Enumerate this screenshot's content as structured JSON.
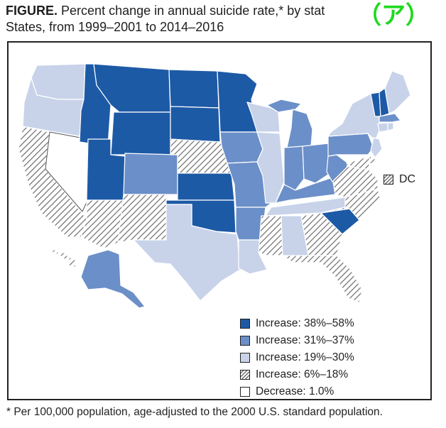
{
  "title_bold": "FIGURE.",
  "title_line1": "Percent change in annual suicide rate,* by stat",
  "title_line2": "States, from 1999–2001 to 2014–2016",
  "badge": "（ア）",
  "dc_label": "DC",
  "footnote": "* Per 100,000 population, age-adjusted to the 2000 U.S. standard population.",
  "legend": [
    {
      "label": "Increase: 38%–58%",
      "fill": "#1d5aa6",
      "pattern": "solid"
    },
    {
      "label": "Increase: 31%–37%",
      "fill": "#6b8fc8",
      "pattern": "solid"
    },
    {
      "label": "Increase: 19%–30%",
      "fill": "#c8d3ea",
      "pattern": "solid"
    },
    {
      "label": "Increase: 6%–18%",
      "fill": "#ffffff",
      "pattern": "hatch"
    },
    {
      "label": "Decrease: 1.0%",
      "fill": "#ffffff",
      "pattern": "solid"
    }
  ],
  "categories": {
    "c1": "Increase: 38%–58%",
    "c2": "Increase: 31%–37%",
    "c3": "Increase: 19%–30%",
    "c4": "Increase: 6%–18%",
    "c5": "Decrease: 1.0%"
  },
  "colors": {
    "c1": "#1d5aa6",
    "c2": "#6b8fc8",
    "c3": "#c8d3ea",
    "c5": "#ffffff",
    "stroke": "#ffffff",
    "hatch": "#6c6c6c",
    "badge": "#1fd91f"
  },
  "states": [
    {
      "id": "WA",
      "cat": "c3"
    },
    {
      "id": "OR",
      "cat": "c3"
    },
    {
      "id": "CA",
      "cat": "c4"
    },
    {
      "id": "NV",
      "cat": "c5"
    },
    {
      "id": "ID",
      "cat": "c1"
    },
    {
      "id": "MT",
      "cat": "c1"
    },
    {
      "id": "WY",
      "cat": "c1"
    },
    {
      "id": "UT",
      "cat": "c1"
    },
    {
      "id": "AZ",
      "cat": "c4"
    },
    {
      "id": "CO",
      "cat": "c2"
    },
    {
      "id": "NM",
      "cat": "c4"
    },
    {
      "id": "ND",
      "cat": "c1"
    },
    {
      "id": "SD",
      "cat": "c1"
    },
    {
      "id": "NE",
      "cat": "c4"
    },
    {
      "id": "KS",
      "cat": "c1"
    },
    {
      "id": "OK",
      "cat": "c1"
    },
    {
      "id": "TX",
      "cat": "c3"
    },
    {
      "id": "MN",
      "cat": "c1"
    },
    {
      "id": "IA",
      "cat": "c2"
    },
    {
      "id": "MO",
      "cat": "c2"
    },
    {
      "id": "AR",
      "cat": "c2"
    },
    {
      "id": "LA",
      "cat": "c3"
    },
    {
      "id": "WI",
      "cat": "c3"
    },
    {
      "id": "IL",
      "cat": "c3"
    },
    {
      "id": "MI",
      "cat": "c2"
    },
    {
      "id": "IN",
      "cat": "c2"
    },
    {
      "id": "OH",
      "cat": "c2"
    },
    {
      "id": "KY",
      "cat": "c2"
    },
    {
      "id": "TN",
      "cat": "c3"
    },
    {
      "id": "MS",
      "cat": "c4"
    },
    {
      "id": "AL",
      "cat": "c3"
    },
    {
      "id": "GA",
      "cat": "c4"
    },
    {
      "id": "FL",
      "cat": "c4"
    },
    {
      "id": "SC",
      "cat": "c1"
    },
    {
      "id": "NC",
      "cat": "c4"
    },
    {
      "id": "VA",
      "cat": "c4"
    },
    {
      "id": "WV",
      "cat": "c2"
    },
    {
      "id": "PA",
      "cat": "c2"
    },
    {
      "id": "NY",
      "cat": "c3"
    },
    {
      "id": "VT",
      "cat": "c1"
    },
    {
      "id": "NH",
      "cat": "c1"
    },
    {
      "id": "ME",
      "cat": "c3"
    },
    {
      "id": "MA",
      "cat": "c2"
    },
    {
      "id": "CT",
      "cat": "c3"
    },
    {
      "id": "RI",
      "cat": "c3"
    },
    {
      "id": "NJ",
      "cat": "c3"
    },
    {
      "id": "DE",
      "cat": "c4"
    },
    {
      "id": "MD",
      "cat": "c4"
    },
    {
      "id": "AK",
      "cat": "c2"
    },
    {
      "id": "HI",
      "cat": "c4"
    }
  ]
}
